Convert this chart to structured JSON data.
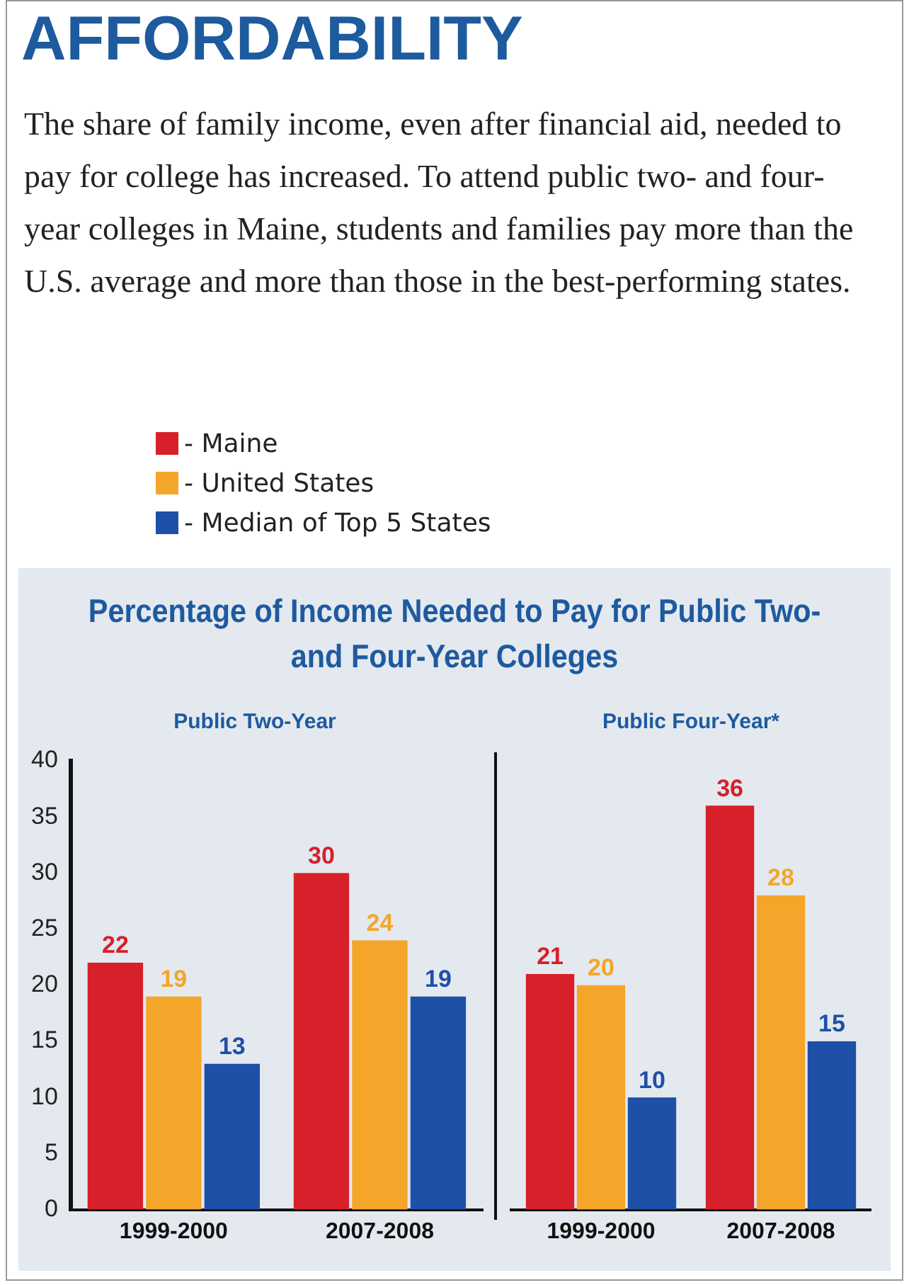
{
  "chart_data": [
    {
      "type": "bar",
      "title": "Percentage of Income Needed to Pay for Public Two- and Four-Year Colleges",
      "subtitle": "Public Two-Year",
      "annotations": [
        "AFFORDABILITY",
        "The share of family income, even after financial aid, needed to pay for college has increased. To attend public two- and four-year colleges in Maine, students and families pay more than the U.S. average and more than those in the best-performing states."
      ],
      "categories": [
        "1999-2000",
        "2007-2008"
      ],
      "series": [
        {
          "name": "- Maine",
          "color": "#d7202a",
          "values": [
            22,
            30
          ]
        },
        {
          "name": "- United States",
          "color": "#f4a62a",
          "values": [
            19,
            24
          ]
        },
        {
          "name": "- Median of Top 5 States",
          "color": "#1f50a8",
          "values": [
            13,
            19
          ]
        }
      ],
      "ylim": [
        0,
        40
      ],
      "yticks": [
        0,
        5,
        10,
        15,
        20,
        25,
        30,
        35,
        40
      ],
      "data_labels": true,
      "legend": "top",
      "grid": false
    },
    {
      "type": "bar",
      "subtitle": "Public Four-Year*",
      "categories": [
        "1999-2000",
        "2007-2008"
      ],
      "series": [
        {
          "color": "#d7202a",
          "values": [
            21,
            36
          ]
        },
        {
          "color": "#f4a62a",
          "values": [
            20,
            28
          ]
        },
        {
          "color": "#1f50a8",
          "values": [
            10,
            15
          ]
        }
      ],
      "ylim": [
        0,
        40
      ],
      "yticks": [
        0,
        5,
        10,
        15,
        20,
        25,
        30,
        35,
        40
      ],
      "tick_labels": "x",
      "data_labels": true,
      "grid": false
    }
  ]
}
